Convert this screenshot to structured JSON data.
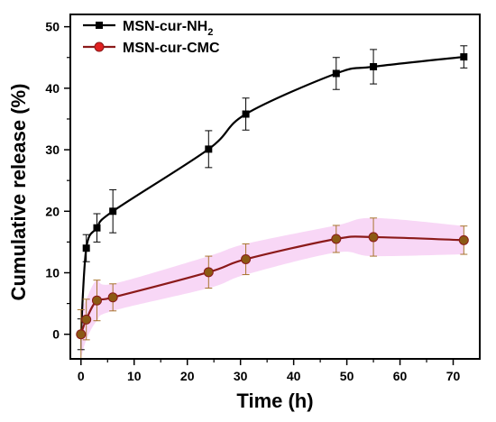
{
  "chart_data": {
    "type": "line",
    "xlabel": "Time (h)",
    "ylabel": "Cumulative release (%)",
    "xlim": [
      -2,
      75
    ],
    "ylim": [
      -4,
      52
    ],
    "xticks": [
      0,
      10,
      20,
      30,
      40,
      50,
      60,
      70
    ],
    "yticks": [
      0,
      10,
      20,
      30,
      40,
      50
    ],
    "grid": false,
    "legend_position": "top-left",
    "series": [
      {
        "name_prefix": "MSN-cur-NH",
        "name_subscript": "2",
        "color": "#000000",
        "errorbar_color": "#000000",
        "marker": "square",
        "x": [
          0,
          1,
          3,
          6,
          24,
          31,
          48,
          55,
          72
        ],
        "y": [
          0,
          14,
          17.3,
          20,
          30.1,
          35.8,
          42.4,
          43.5,
          45.1
        ],
        "error": [
          2.5,
          2.2,
          2.3,
          3.5,
          3.0,
          2.6,
          2.6,
          2.8,
          1.8
        ]
      },
      {
        "name_prefix": "MSN-cur-CMC",
        "name_subscript": "",
        "color": "#8b1a1a",
        "marker_fill": "#e02020",
        "marker_inner": "#8b5a14",
        "errorbar_color": "#a8742e",
        "band_color": "#f2b6ee",
        "marker": "circle",
        "x": [
          0,
          1,
          3,
          6,
          24,
          31,
          48,
          55,
          72
        ],
        "y": [
          0,
          2.4,
          5.5,
          6.0,
          10.1,
          12.2,
          15.5,
          15.8,
          15.3
        ],
        "error": [
          4.0,
          3.3,
          3.3,
          2.2,
          2.6,
          2.5,
          2.2,
          3.1,
          2.3
        ]
      }
    ]
  }
}
